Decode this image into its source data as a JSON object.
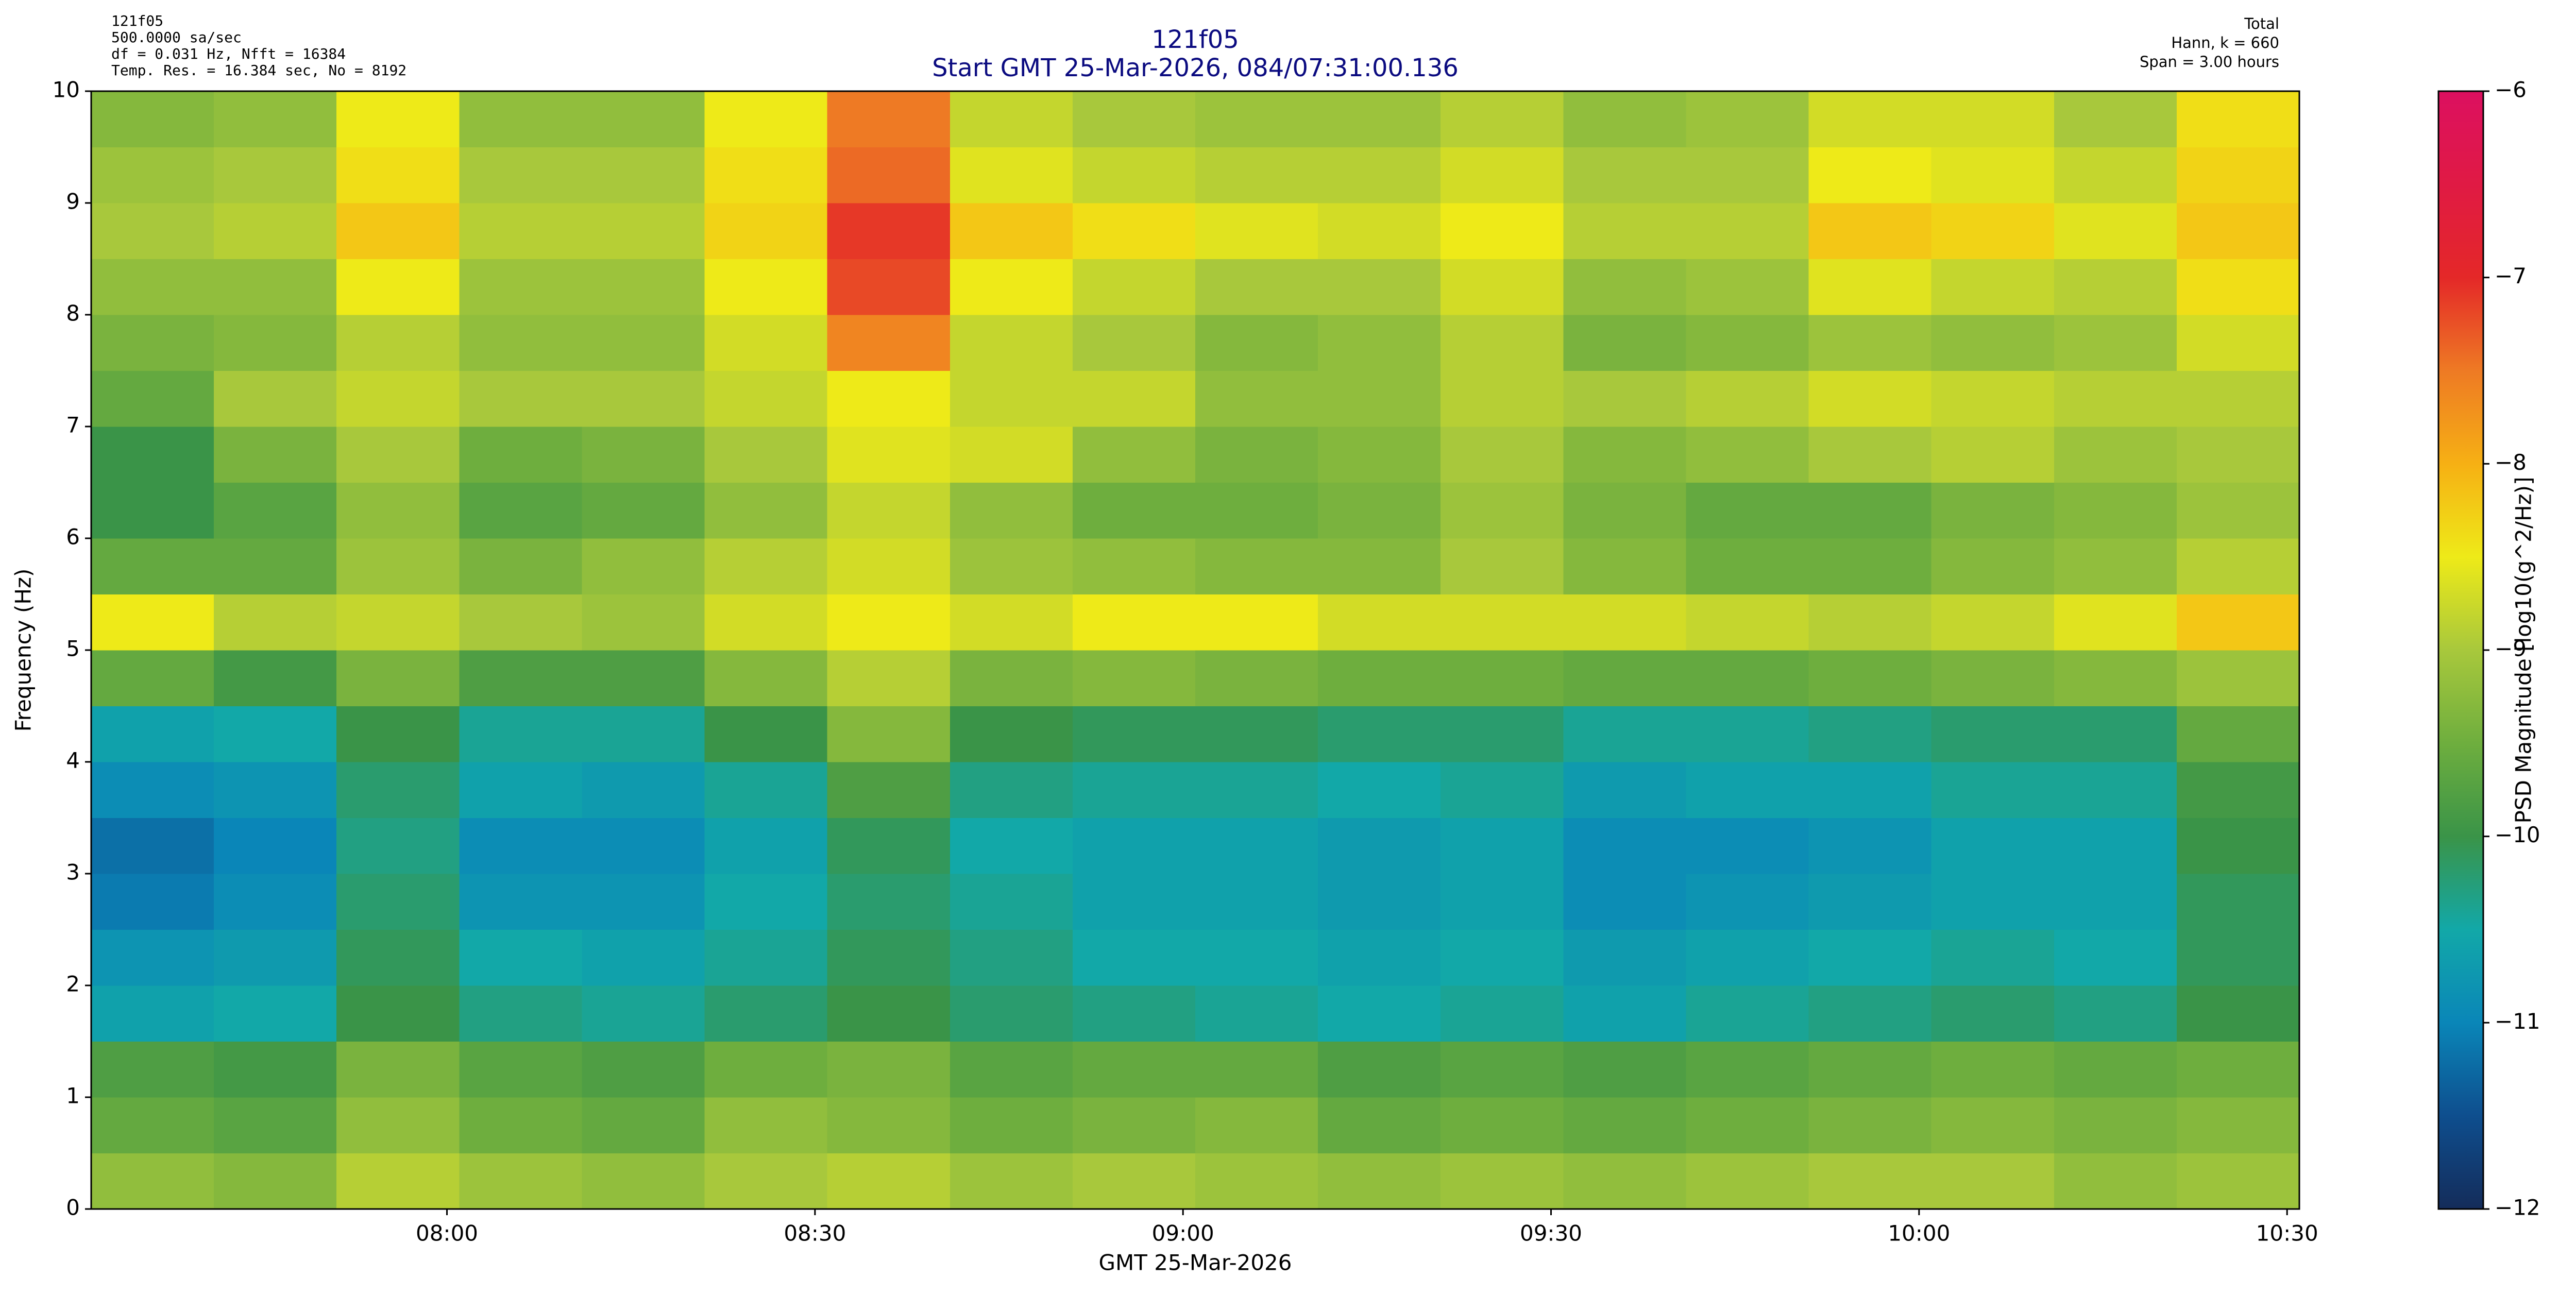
{
  "chart_data": {
    "type": "heatmap",
    "title": "121f05",
    "subtitle": "Start GMT 25-Mar-2026, 084/07:31:00.136",
    "header_left": [
      "121f05",
      "500.0000 sa/sec",
      "df = 0.031 Hz,  Nfft = 16384",
      "Temp. Res. = 16.384 sec, No = 8192"
    ],
    "header_right": [
      "Total",
      "Hann, k = 660",
      "Span = 3.00 hours"
    ],
    "xlabel": "GMT 25-Mar-2026",
    "ylabel": "Frequency (Hz)",
    "colorbar_label": "PSD Magnitude [log10(g^2/Hz)]",
    "xlim": [
      451,
      631
    ],
    "xticks": [
      {
        "value": 480,
        "label": "08:00"
      },
      {
        "value": 510,
        "label": "08:30"
      },
      {
        "value": 540,
        "label": "09:00"
      },
      {
        "value": 570,
        "label": "09:30"
      },
      {
        "value": 600,
        "label": "10:00"
      },
      {
        "value": 630,
        "label": "10:30"
      }
    ],
    "ylim": [
      0,
      10
    ],
    "yticks": [
      0,
      1,
      2,
      3,
      4,
      5,
      6,
      7,
      8,
      9,
      10
    ],
    "clim": [
      -12,
      -6
    ],
    "cticks": [
      {
        "value": -12,
        "label": "−12"
      },
      {
        "value": -11,
        "label": "−11"
      },
      {
        "value": -10,
        "label": "−10"
      },
      {
        "value": -9,
        "label": "−9"
      },
      {
        "value": -8,
        "label": "−8"
      },
      {
        "value": -7,
        "label": "−7"
      },
      {
        "value": -6,
        "label": "−6"
      }
    ],
    "colormap": [
      "#142c5a",
      "#0e4e8e",
      "#0a86b8",
      "#12a8a8",
      "#3a9448",
      "#6eae3e",
      "#a8c83c",
      "#eeea18",
      "#f6b014",
      "#ee7a24",
      "#e42828",
      "#e01a44",
      "#dc1060"
    ],
    "x": [
      456,
      466,
      476,
      486,
      496,
      506,
      516,
      526,
      536,
      546,
      556,
      566,
      576,
      586,
      596,
      606,
      616,
      626
    ],
    "y": [
      0.25,
      0.75,
      1.25,
      1.75,
      2.25,
      2.75,
      3.25,
      3.75,
      4.25,
      4.75,
      5.25,
      5.75,
      6.25,
      6.75,
      7.25,
      7.75,
      8.25,
      8.75,
      9.25,
      9.75
    ],
    "z": [
      [
        -9.2,
        -9.3,
        -8.9,
        -9.1,
        -9.2,
        -9.0,
        -8.9,
        -9.1,
        -9.0,
        -9.1,
        -9.2,
        -9.1,
        -9.2,
        -9.1,
        -9.0,
        -9.0,
        -9.2,
        -9.1
      ],
      [
        -9.6,
        -9.7,
        -9.2,
        -9.5,
        -9.6,
        -9.2,
        -9.3,
        -9.5,
        -9.4,
        -9.3,
        -9.6,
        -9.5,
        -9.6,
        -9.5,
        -9.4,
        -9.3,
        -9.4,
        -9.3
      ],
      [
        -9.8,
        -9.9,
        -9.4,
        -9.7,
        -9.8,
        -9.5,
        -9.4,
        -9.7,
        -9.6,
        -9.6,
        -9.8,
        -9.7,
        -9.8,
        -9.7,
        -9.6,
        -9.5,
        -9.6,
        -9.5
      ],
      [
        -10.6,
        -10.5,
        -10.0,
        -10.3,
        -10.4,
        -10.2,
        -10.0,
        -10.2,
        -10.3,
        -10.4,
        -10.5,
        -10.4,
        -10.6,
        -10.4,
        -10.3,
        -10.2,
        -10.3,
        -10.0
      ],
      [
        -10.8,
        -10.7,
        -10.1,
        -10.5,
        -10.6,
        -10.4,
        -10.1,
        -10.3,
        -10.5,
        -10.5,
        -10.6,
        -10.5,
        -10.7,
        -10.6,
        -10.5,
        -10.4,
        -10.5,
        -10.1
      ],
      [
        -11.1,
        -10.9,
        -10.2,
        -10.8,
        -10.8,
        -10.5,
        -10.2,
        -10.4,
        -10.6,
        -10.6,
        -10.7,
        -10.6,
        -10.9,
        -10.8,
        -10.7,
        -10.6,
        -10.6,
        -10.1
      ],
      [
        -11.2,
        -11.0,
        -10.3,
        -10.9,
        -10.9,
        -10.6,
        -10.1,
        -10.5,
        -10.6,
        -10.6,
        -10.7,
        -10.6,
        -10.9,
        -10.9,
        -10.8,
        -10.6,
        -10.6,
        -10.0
      ],
      [
        -10.9,
        -10.8,
        -10.2,
        -10.6,
        -10.7,
        -10.4,
        -9.8,
        -10.3,
        -10.4,
        -10.4,
        -10.5,
        -10.4,
        -10.7,
        -10.6,
        -10.6,
        -10.4,
        -10.4,
        -9.9
      ],
      [
        -10.6,
        -10.5,
        -10.0,
        -10.4,
        -10.4,
        -10.0,
        -9.3,
        -10.0,
        -10.1,
        -10.1,
        -10.2,
        -10.2,
        -10.4,
        -10.4,
        -10.3,
        -10.2,
        -10.2,
        -9.6
      ],
      [
        -9.6,
        -9.9,
        -9.4,
        -9.8,
        -9.8,
        -9.3,
        -8.9,
        -9.4,
        -9.3,
        -9.4,
        -9.5,
        -9.5,
        -9.6,
        -9.6,
        -9.5,
        -9.4,
        -9.3,
        -9.1
      ],
      [
        -8.5,
        -8.9,
        -8.8,
        -9.0,
        -9.1,
        -8.7,
        -8.5,
        -8.7,
        -8.5,
        -8.5,
        -8.7,
        -8.7,
        -8.7,
        -8.8,
        -8.9,
        -8.8,
        -8.6,
        -8.2
      ],
      [
        -9.6,
        -9.6,
        -9.1,
        -9.4,
        -9.2,
        -8.9,
        -8.7,
        -9.1,
        -9.2,
        -9.3,
        -9.3,
        -9.0,
        -9.3,
        -9.5,
        -9.5,
        -9.3,
        -9.2,
        -8.9
      ],
      [
        -10.0,
        -9.7,
        -9.2,
        -9.7,
        -9.6,
        -9.2,
        -8.8,
        -9.2,
        -9.5,
        -9.5,
        -9.4,
        -9.1,
        -9.4,
        -9.6,
        -9.6,
        -9.4,
        -9.3,
        -9.1
      ],
      [
        -10.0,
        -9.4,
        -9.0,
        -9.5,
        -9.4,
        -9.0,
        -8.6,
        -8.7,
        -9.2,
        -9.4,
        -9.3,
        -9.0,
        -9.3,
        -9.2,
        -9.0,
        -8.9,
        -9.1,
        -9.0
      ],
      [
        -9.6,
        -9.0,
        -8.8,
        -9.0,
        -9.0,
        -8.8,
        -8.5,
        -8.8,
        -8.8,
        -9.2,
        -9.2,
        -8.9,
        -9.0,
        -8.9,
        -8.7,
        -8.8,
        -8.9,
        -8.9
      ],
      [
        -9.4,
        -9.3,
        -8.9,
        -9.2,
        -9.2,
        -8.7,
        -7.6,
        -8.8,
        -9.0,
        -9.3,
        -9.2,
        -8.9,
        -9.4,
        -9.3,
        -9.1,
        -9.2,
        -9.1,
        -8.7
      ],
      [
        -9.2,
        -9.2,
        -8.5,
        -9.1,
        -9.1,
        -8.5,
        -7.2,
        -8.5,
        -8.8,
        -9.0,
        -9.0,
        -8.7,
        -9.2,
        -9.1,
        -8.6,
        -8.8,
        -8.9,
        -8.4
      ],
      [
        -9.0,
        -8.9,
        -8.2,
        -8.9,
        -8.9,
        -8.3,
        -7.1,
        -8.2,
        -8.4,
        -8.6,
        -8.7,
        -8.5,
        -8.9,
        -8.9,
        -8.2,
        -8.3,
        -8.6,
        -8.2
      ],
      [
        -9.1,
        -9.0,
        -8.4,
        -9.0,
        -9.0,
        -8.4,
        -7.4,
        -8.6,
        -8.8,
        -8.9,
        -8.9,
        -8.7,
        -9.0,
        -9.0,
        -8.5,
        -8.6,
        -8.8,
        -8.3
      ],
      [
        -9.3,
        -9.2,
        -8.5,
        -9.2,
        -9.2,
        -8.5,
        -7.5,
        -8.8,
        -9.0,
        -9.1,
        -9.1,
        -8.9,
        -9.2,
        -9.1,
        -8.7,
        -8.7,
        -9.0,
        -8.4
      ]
    ]
  }
}
